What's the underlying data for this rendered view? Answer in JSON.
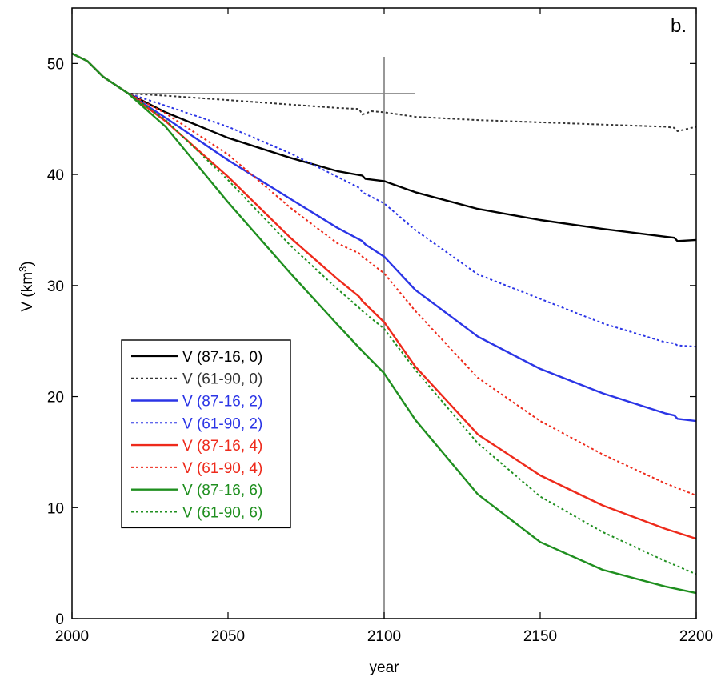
{
  "chart_data": {
    "type": "line",
    "panel_label": "b.",
    "xlabel": "year",
    "ylabel": "V (km",
    "ylabel_sup": "3",
    "ylabel_close": ")",
    "xlim": [
      2000,
      2200
    ],
    "ylim": [
      0,
      55
    ],
    "xticks": [
      2000,
      2050,
      2100,
      2150,
      2200
    ],
    "yticks": [
      0,
      10,
      20,
      30,
      40,
      50
    ],
    "grid": false,
    "legend_position": "lower-left",
    "reference_lines": {
      "vertical_x": 2100,
      "vertical_y_range": [
        0,
        50.6
      ],
      "horizontal_y": 47.3,
      "horizontal_x_range": [
        2018,
        2110
      ]
    },
    "series": [
      {
        "name": "V (87-16, 0)",
        "color": "#000000",
        "dash": "solid",
        "x": [
          2000,
          2005,
          2010,
          2018,
          2030,
          2050,
          2070,
          2085,
          2093,
          2094,
          2100,
          2110,
          2130,
          2150,
          2170,
          2190,
          2193,
          2194,
          2200
        ],
        "y": [
          50.9,
          50.2,
          48.8,
          47.3,
          45.6,
          43.3,
          41.5,
          40.3,
          39.9,
          39.6,
          39.4,
          38.4,
          36.9,
          35.9,
          35.1,
          34.4,
          34.3,
          34.0,
          34.1
        ]
      },
      {
        "name": "V (61-90, 0)",
        "color": "#333333",
        "dash": "dotted",
        "x": [
          2000,
          2005,
          2010,
          2018,
          2030,
          2050,
          2070,
          2085,
          2092,
          2093,
          2096,
          2100,
          2110,
          2130,
          2150,
          2170,
          2190,
          2193,
          2194,
          2200
        ],
        "y": [
          50.9,
          50.2,
          48.8,
          47.3,
          47.1,
          46.7,
          46.3,
          46.0,
          45.9,
          45.4,
          45.7,
          45.6,
          45.2,
          44.9,
          44.7,
          44.5,
          44.3,
          44.2,
          43.9,
          44.3
        ]
      },
      {
        "name": "V (87-16, 2)",
        "color": "#2b35e6",
        "dash": "solid",
        "x": [
          2000,
          2005,
          2010,
          2018,
          2030,
          2050,
          2070,
          2085,
          2093,
          2094,
          2100,
          2110,
          2130,
          2150,
          2170,
          2190,
          2193,
          2194,
          2200
        ],
        "y": [
          50.9,
          50.2,
          48.8,
          47.3,
          45.1,
          41.3,
          37.8,
          35.2,
          34.0,
          33.7,
          32.6,
          29.6,
          25.4,
          22.5,
          20.3,
          18.5,
          18.3,
          18.0,
          17.8
        ]
      },
      {
        "name": "V (61-90, 2)",
        "color": "#2b35e6",
        "dash": "dotted",
        "x": [
          2000,
          2005,
          2010,
          2018,
          2030,
          2050,
          2070,
          2085,
          2092,
          2093,
          2100,
          2110,
          2130,
          2150,
          2170,
          2190,
          2193,
          2194,
          2200
        ],
        "y": [
          50.9,
          50.2,
          48.8,
          47.3,
          46.2,
          44.3,
          41.9,
          39.8,
          38.8,
          38.4,
          37.4,
          35.0,
          31.0,
          28.8,
          26.6,
          24.9,
          24.8,
          24.6,
          24.5
        ]
      },
      {
        "name": "V (87-16, 4)",
        "color": "#ee2a1b",
        "dash": "solid",
        "x": [
          2000,
          2005,
          2010,
          2018,
          2030,
          2050,
          2070,
          2085,
          2092,
          2093,
          2100,
          2110,
          2130,
          2150,
          2170,
          2190,
          2200
        ],
        "y": [
          50.9,
          50.2,
          48.8,
          47.3,
          44.8,
          39.8,
          34.3,
          30.6,
          29.0,
          28.6,
          26.7,
          22.7,
          16.6,
          12.9,
          10.2,
          8.1,
          7.2
        ]
      },
      {
        "name": "V (61-90, 4)",
        "color": "#ee2a1b",
        "dash": "dotted",
        "x": [
          2000,
          2005,
          2010,
          2018,
          2030,
          2050,
          2070,
          2085,
          2092,
          2093,
          2100,
          2110,
          2130,
          2150,
          2170,
          2190,
          2200
        ],
        "y": [
          50.9,
          50.2,
          48.8,
          47.3,
          45.5,
          41.8,
          37.0,
          33.8,
          32.9,
          32.6,
          31.1,
          27.7,
          21.7,
          17.8,
          14.8,
          12.2,
          11.1
        ]
      },
      {
        "name": "V (87-16, 6)",
        "color": "#1f8f1f",
        "dash": "solid",
        "x": [
          2000,
          2005,
          2010,
          2018,
          2030,
          2050,
          2070,
          2085,
          2092,
          2093,
          2100,
          2110,
          2130,
          2150,
          2170,
          2190,
          2200
        ],
        "y": [
          50.9,
          50.2,
          48.8,
          47.3,
          44.3,
          37.5,
          31.1,
          26.5,
          24.4,
          24.1,
          22.1,
          17.9,
          11.2,
          6.9,
          4.4,
          2.9,
          2.3
        ]
      },
      {
        "name": "V (61-90, 6)",
        "color": "#1f8f1f",
        "dash": "dotted",
        "x": [
          2000,
          2005,
          2010,
          2018,
          2030,
          2050,
          2070,
          2085,
          2092,
          2093,
          2100,
          2110,
          2130,
          2150,
          2170,
          2190,
          2200
        ],
        "y": [
          50.9,
          50.2,
          48.8,
          47.3,
          44.9,
          39.5,
          33.6,
          29.7,
          28.0,
          27.7,
          26.1,
          22.4,
          15.8,
          11.0,
          7.8,
          5.2,
          4.0
        ]
      }
    ]
  }
}
